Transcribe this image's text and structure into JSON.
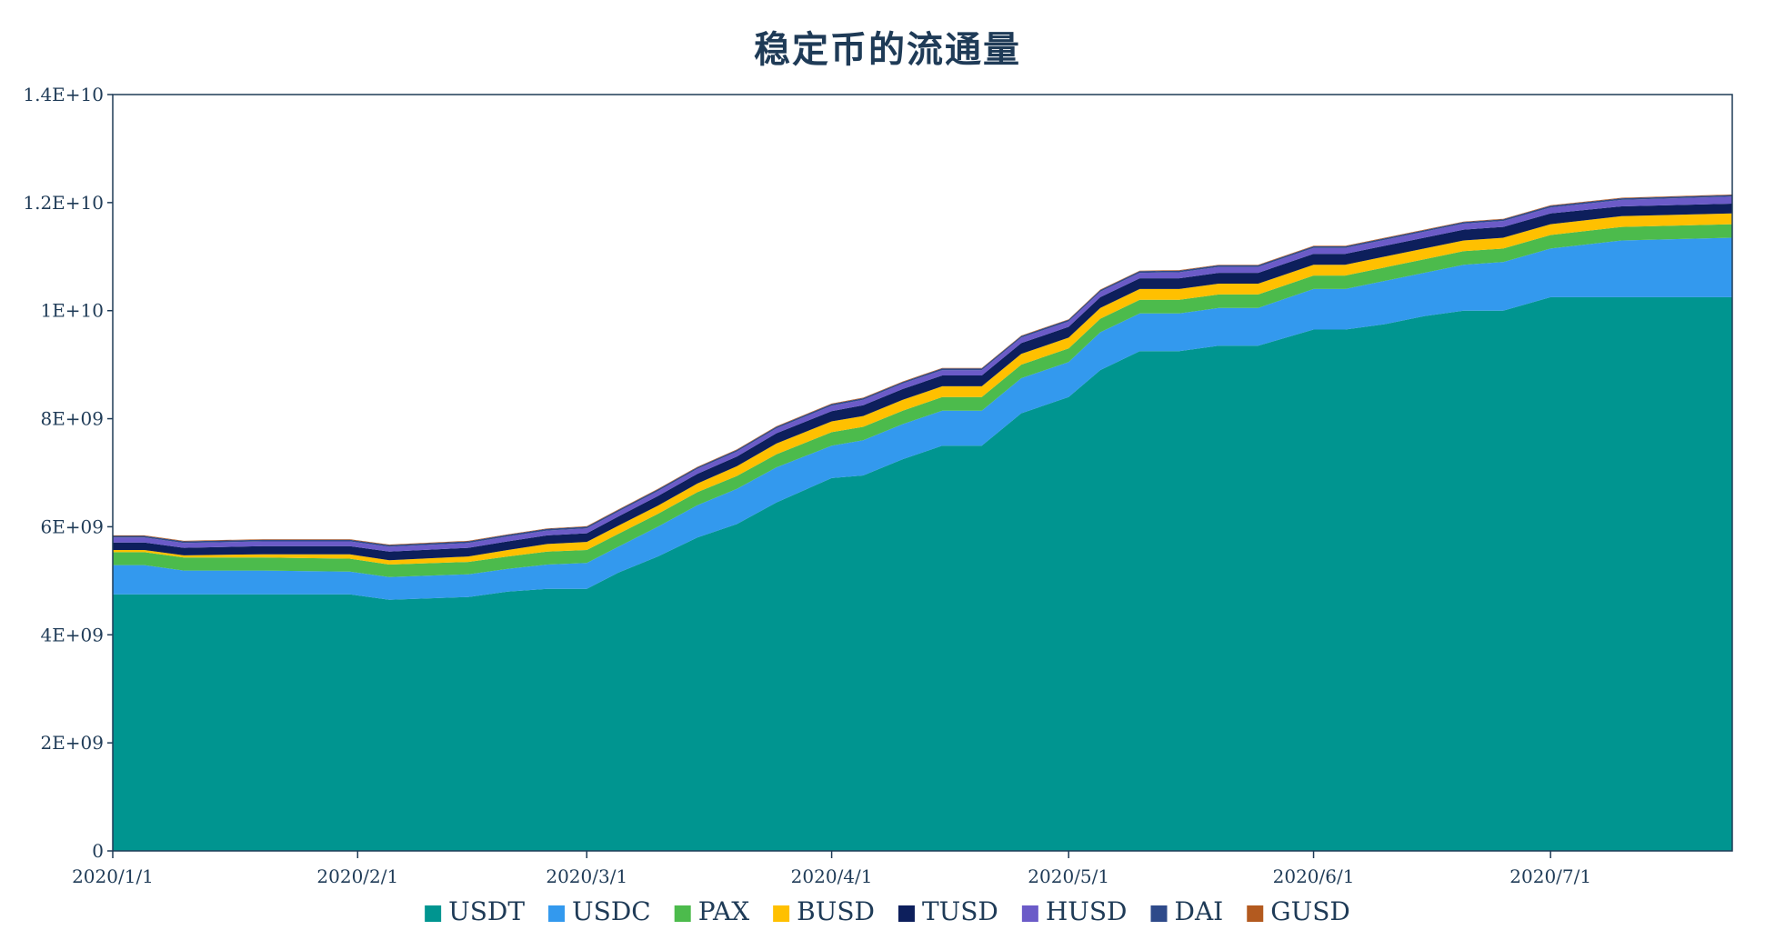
{
  "chart_data": {
    "type": "area",
    "stacked": true,
    "title": "稳定币的流通量",
    "xlabel": "",
    "ylabel": "",
    "ylim": [
      0,
      14000000000
    ],
    "yticks": [
      {
        "value": 0,
        "label": "0"
      },
      {
        "value": 2000000000,
        "label": "2E+09"
      },
      {
        "value": 4000000000,
        "label": "4E+09"
      },
      {
        "value": 6000000000,
        "label": "6E+09"
      },
      {
        "value": 8000000000,
        "label": "8E+09"
      },
      {
        "value": 10000000000,
        "label": "1E+10"
      },
      {
        "value": 12000000000,
        "label": "1.2E+10"
      },
      {
        "value": 14000000000,
        "label": "1.4E+10"
      }
    ],
    "xrange": [
      "2020-01-01",
      "2020-07-24"
    ],
    "xticks": [
      {
        "date": "2020-01-01",
        "label": "2020/1/1"
      },
      {
        "date": "2020-02-01",
        "label": "2020/2/1"
      },
      {
        "date": "2020-03-01",
        "label": "2020/3/1"
      },
      {
        "date": "2020-04-01",
        "label": "2020/4/1"
      },
      {
        "date": "2020-05-01",
        "label": "2020/5/1"
      },
      {
        "date": "2020-06-01",
        "label": "2020/6/1"
      },
      {
        "date": "2020-07-01",
        "label": "2020/7/1"
      }
    ],
    "grid": false,
    "legend_position": "bottom",
    "dates": [
      "2020-01-01",
      "2020-01-05",
      "2020-01-10",
      "2020-01-20",
      "2020-01-31",
      "2020-02-05",
      "2020-02-15",
      "2020-02-20",
      "2020-02-25",
      "2020-03-01",
      "2020-03-05",
      "2020-03-10",
      "2020-03-15",
      "2020-03-20",
      "2020-03-25",
      "2020-04-01",
      "2020-04-05",
      "2020-04-10",
      "2020-04-15",
      "2020-04-20",
      "2020-04-25",
      "2020-05-01",
      "2020-05-05",
      "2020-05-10",
      "2020-05-15",
      "2020-05-20",
      "2020-05-25",
      "2020-06-01",
      "2020-06-05",
      "2020-06-10",
      "2020-06-15",
      "2020-06-20",
      "2020-06-25",
      "2020-07-01",
      "2020-07-10",
      "2020-07-24"
    ],
    "series": [
      {
        "name": "USDT",
        "color": "#009590",
        "values": [
          4750000000,
          4750000000,
          4750000000,
          4750000000,
          4750000000,
          4650000000,
          4700000000,
          4800000000,
          4850000000,
          4850000000,
          5150000000,
          5450000000,
          5800000000,
          6050000000,
          6450000000,
          6900000000,
          6950000000,
          7250000000,
          7500000000,
          7500000000,
          8100000000,
          8400000000,
          8900000000,
          9250000000,
          9250000000,
          9350000000,
          9350000000,
          9650000000,
          9650000000,
          9750000000,
          9900000000,
          10000000000,
          10000000000,
          10250000000,
          10250000000,
          10250000000
        ]
      },
      {
        "name": "USDC",
        "color": "#3399ee",
        "values": [
          540000000,
          540000000,
          440000000,
          440000000,
          420000000,
          420000000,
          420000000,
          420000000,
          450000000,
          480000000,
          480000000,
          550000000,
          600000000,
          650000000,
          650000000,
          600000000,
          650000000,
          650000000,
          650000000,
          650000000,
          650000000,
          650000000,
          700000000,
          700000000,
          700000000,
          700000000,
          700000000,
          750000000,
          750000000,
          800000000,
          800000000,
          850000000,
          900000000,
          900000000,
          1050000000,
          1100000000
        ]
      },
      {
        "name": "PAX",
        "color": "#4cbb4c",
        "values": [
          240000000,
          240000000,
          240000000,
          240000000,
          240000000,
          230000000,
          230000000,
          230000000,
          240000000,
          240000000,
          240000000,
          240000000,
          240000000,
          240000000,
          240000000,
          250000000,
          250000000,
          250000000,
          250000000,
          250000000,
          250000000,
          250000000,
          250000000,
          250000000,
          250000000,
          250000000,
          250000000,
          250000000,
          250000000,
          250000000,
          250000000,
          250000000,
          250000000,
          250000000,
          250000000,
          250000000
        ]
      },
      {
        "name": "BUSD",
        "color": "#ffc000",
        "values": [
          40000000,
          40000000,
          40000000,
          60000000,
          80000000,
          80000000,
          100000000,
          120000000,
          140000000,
          150000000,
          150000000,
          150000000,
          160000000,
          180000000,
          200000000,
          200000000,
          200000000,
          200000000,
          200000000,
          200000000,
          200000000,
          200000000,
          200000000,
          200000000,
          200000000,
          200000000,
          200000000,
          200000000,
          200000000,
          200000000,
          200000000,
          200000000,
          200000000,
          200000000,
          200000000,
          200000000
        ]
      },
      {
        "name": "TUSD",
        "color": "#0d1f5c",
        "values": [
          140000000,
          140000000,
          140000000,
          150000000,
          150000000,
          160000000,
          160000000,
          160000000,
          160000000,
          160000000,
          170000000,
          180000000,
          180000000,
          180000000,
          190000000,
          190000000,
          200000000,
          200000000,
          200000000,
          200000000,
          200000000,
          200000000,
          200000000,
          200000000,
          200000000,
          200000000,
          200000000,
          200000000,
          200000000,
          200000000,
          200000000,
          200000000,
          200000000,
          200000000,
          180000000,
          180000000
        ]
      },
      {
        "name": "HUSD",
        "color": "#6b5bc8",
        "values": [
          90000000,
          90000000,
          90000000,
          90000000,
          90000000,
          90000000,
          90000000,
          90000000,
          90000000,
          90000000,
          90000000,
          90000000,
          90000000,
          90000000,
          90000000,
          100000000,
          100000000,
          100000000,
          100000000,
          100000000,
          100000000,
          100000000,
          100000000,
          100000000,
          110000000,
          110000000,
          110000000,
          110000000,
          110000000,
          110000000,
          110000000,
          110000000,
          110000000,
          110000000,
          120000000,
          130000000
        ]
      },
      {
        "name": "DAI",
        "color": "#2e4a8a",
        "values": [
          30000000,
          30000000,
          30000000,
          30000000,
          30000000,
          30000000,
          30000000,
          30000000,
          30000000,
          30000000,
          30000000,
          30000000,
          30000000,
          30000000,
          30000000,
          30000000,
          30000000,
          30000000,
          30000000,
          30000000,
          30000000,
          30000000,
          30000000,
          30000000,
          30000000,
          30000000,
          30000000,
          30000000,
          30000000,
          30000000,
          30000000,
          30000000,
          30000000,
          30000000,
          30000000,
          30000000
        ]
      },
      {
        "name": "GUSD",
        "color": "#b35a1f",
        "values": [
          10000000,
          10000000,
          10000000,
          10000000,
          10000000,
          10000000,
          10000000,
          10000000,
          10000000,
          10000000,
          10000000,
          10000000,
          10000000,
          10000000,
          10000000,
          10000000,
          10000000,
          10000000,
          10000000,
          10000000,
          10000000,
          10000000,
          10000000,
          10000000,
          10000000,
          10000000,
          10000000,
          10000000,
          10000000,
          10000000,
          10000000,
          10000000,
          10000000,
          10000000,
          10000000,
          10000000
        ]
      }
    ]
  }
}
